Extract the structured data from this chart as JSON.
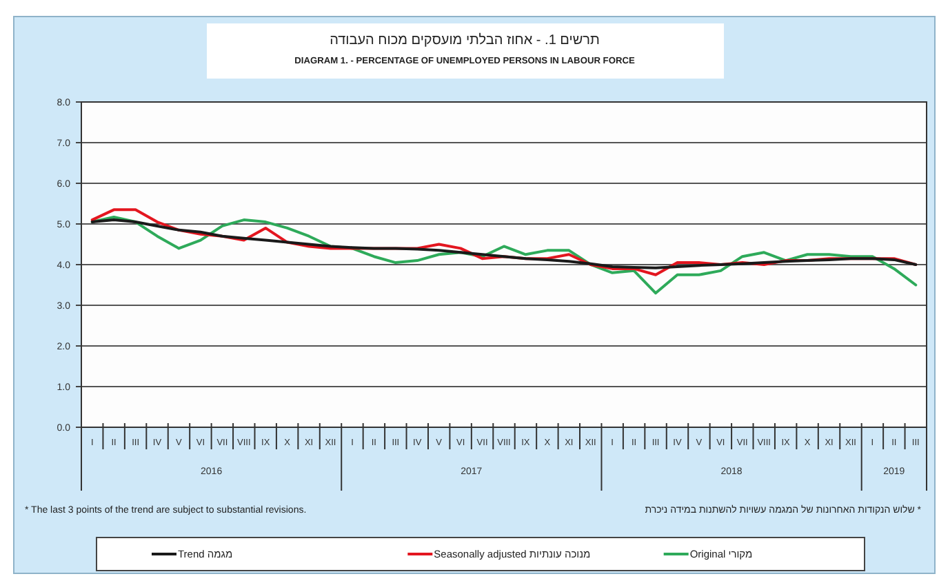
{
  "chart_data": {
    "type": "line",
    "title": "תרשים 1. - אחוז הבלתי מועסקים מכוח העבודה",
    "subtitle": "DIAGRAM 1. - PERCENTAGE OF UNEMPLOYED PERSONS IN LABOUR FORCE",
    "categories": [
      "I",
      "II",
      "III",
      "IV",
      "V",
      "VI",
      "VII",
      "VIII",
      "IX",
      "X",
      "XI",
      "XII",
      "I",
      "II",
      "III",
      "IV",
      "V",
      "VI",
      "VII",
      "VIII",
      "IX",
      "X",
      "XI",
      "XII",
      "I",
      "II",
      "III",
      "IV",
      "V",
      "VI",
      "VII",
      "VIII",
      "IX",
      "X",
      "XI",
      "XII",
      "I",
      "II",
      "III"
    ],
    "series": [
      {
        "name": "Trend מגמה",
        "color": "#1a1a1a",
        "values": [
          5.05,
          5.1,
          5.05,
          4.95,
          4.85,
          4.8,
          4.7,
          4.65,
          4.6,
          4.55,
          4.5,
          4.45,
          4.42,
          4.4,
          4.4,
          4.38,
          4.35,
          4.3,
          4.25,
          4.2,
          4.15,
          4.12,
          4.08,
          4.02,
          3.95,
          3.93,
          3.92,
          3.95,
          3.98,
          4.0,
          4.02,
          4.05,
          4.08,
          4.1,
          4.12,
          4.15,
          4.15,
          4.12,
          4.0
        ]
      },
      {
        "name": "Seasonally adjusted מנוכה עונתיות",
        "color": "#e3161f",
        "values": [
          5.1,
          5.35,
          5.35,
          5.05,
          4.85,
          4.75,
          4.7,
          4.6,
          4.9,
          4.55,
          4.45,
          4.4,
          4.4,
          4.4,
          4.4,
          4.4,
          4.5,
          4.4,
          4.15,
          4.2,
          4.15,
          4.15,
          4.25,
          4.0,
          3.9,
          3.9,
          3.75,
          4.05,
          4.05,
          4.0,
          4.05,
          4.0,
          4.1,
          4.1,
          4.15,
          4.15,
          4.15,
          4.15,
          4.0
        ]
      },
      {
        "name": "Original מקורי",
        "color": "#2eaa5a",
        "values": [
          5.05,
          5.17,
          5.05,
          4.7,
          4.4,
          4.6,
          4.95,
          5.1,
          5.05,
          4.9,
          4.7,
          4.45,
          4.4,
          4.2,
          4.05,
          4.1,
          4.25,
          4.3,
          4.2,
          4.45,
          4.25,
          4.35,
          4.35,
          4.0,
          3.8,
          3.85,
          3.3,
          3.75,
          3.75,
          3.85,
          4.2,
          4.3,
          4.1,
          4.25,
          4.25,
          4.2,
          4.2,
          3.9,
          3.5
        ]
      }
    ],
    "ylim": [
      0,
      8
    ],
    "yticks": [
      {
        "value": 0,
        "label": "0.0"
      },
      {
        "value": 1,
        "label": "1.0"
      },
      {
        "value": 2,
        "label": "2.0"
      },
      {
        "value": 3,
        "label": "3.0"
      },
      {
        "value": 4,
        "label": "4.0"
      },
      {
        "value": 5,
        "label": "5.0"
      },
      {
        "value": 6,
        "label": "6.0"
      },
      {
        "value": 7,
        "label": "7.0"
      },
      {
        "value": 8,
        "label": "8.0"
      }
    ],
    "grid": "y",
    "legend": "bottom",
    "line_style": "solid",
    "annotations": [
      "2016",
      "2017",
      "2018",
      "2019",
      "* The last 3 points of the trend are subject to substantial revisions.",
      "* שלוש הנקודות האחרונות של המגמה עשויות להשתנות במידה ניכרת"
    ]
  }
}
